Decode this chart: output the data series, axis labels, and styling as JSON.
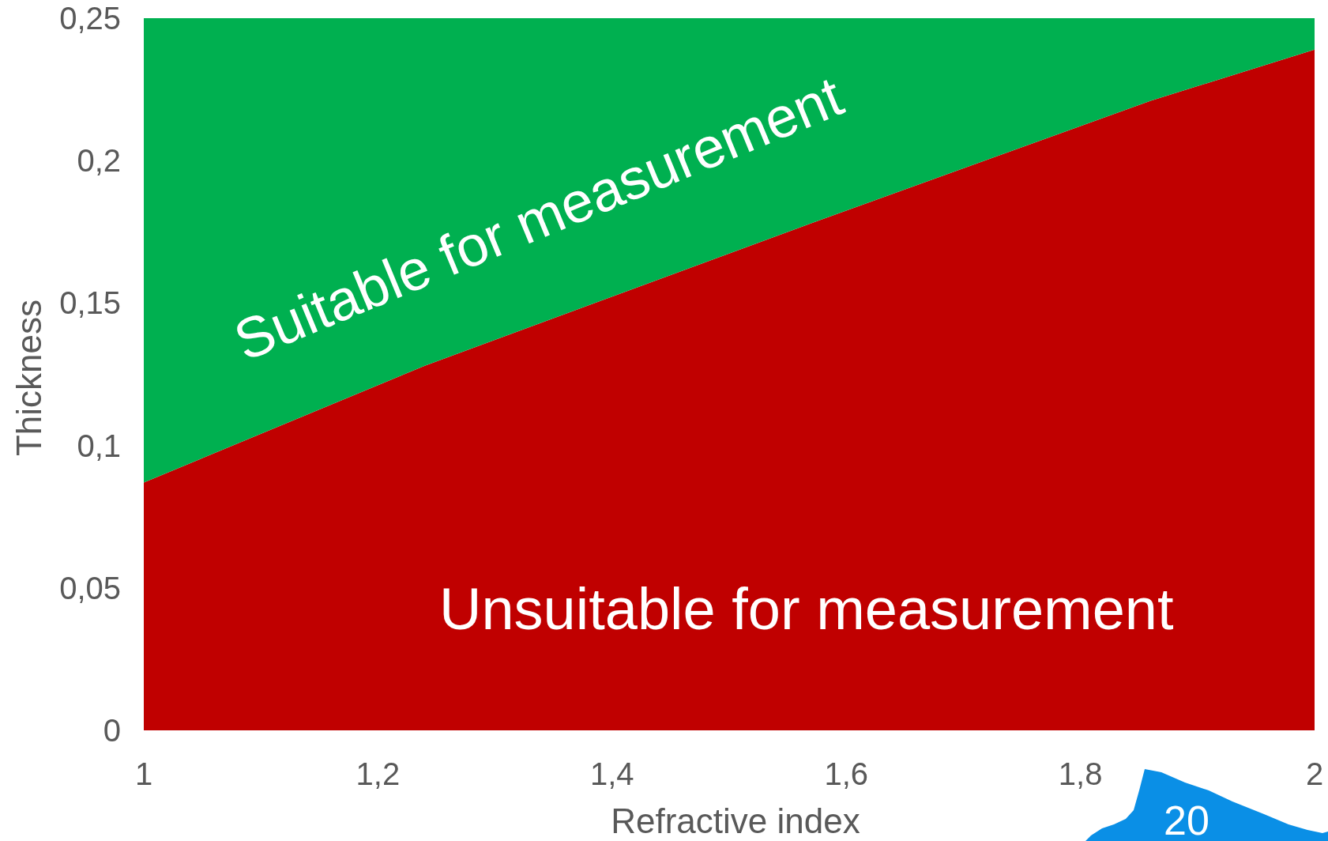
{
  "chart_data": {
    "type": "area",
    "stacked": true,
    "xlabel": "Refractive index",
    "ylabel": "Thickness",
    "x": [
      1,
      1.24,
      1.57,
      1.86,
      2
    ],
    "series": [
      {
        "name": "Unsuitable for measurement",
        "color": "#c00000",
        "values": [
          0.087,
          0.128,
          0.178,
          0.221,
          0.239
        ]
      },
      {
        "name": "Suitable for measurement",
        "color": "#00b050",
        "values": [
          0.163,
          0.122,
          0.072,
          0.029,
          0.011
        ]
      }
    ],
    "xlim": [
      1,
      2
    ],
    "xticks": [
      1,
      {
        "value": 1.2,
        "label": "1,2"
      },
      {
        "value": 1.4,
        "label": "1,4"
      },
      {
        "value": 1.6,
        "label": "1,6"
      },
      {
        "value": 1.8,
        "label": "1,8"
      },
      2
    ],
    "ylim": [
      0,
      0.25
    ],
    "yticks": [
      0,
      {
        "value": 0.05,
        "label": "0,05"
      },
      {
        "value": 0.1,
        "label": "0,1"
      },
      {
        "value": 0.15,
        "label": "0,15"
      },
      {
        "value": 0.2,
        "label": "0,2"
      },
      {
        "value": 0.25,
        "label": "0,25"
      }
    ],
    "annotations": [
      "20"
    ]
  }
}
